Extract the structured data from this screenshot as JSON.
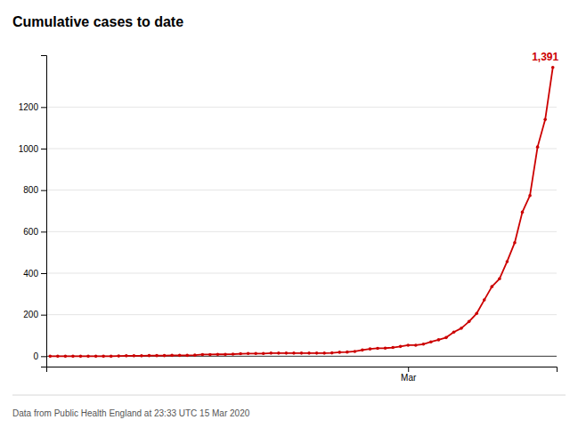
{
  "chart_data": {
    "type": "line",
    "title": "Cumulative cases to date",
    "footnote": "Data from Public Health England at 23:33 UTC 15 Mar 2020",
    "annotations": [
      "1,391"
    ],
    "categories": [
      null,
      null,
      null,
      null,
      null,
      null,
      null,
      null,
      null,
      null,
      null,
      null,
      null,
      null,
      null,
      null,
      null,
      null,
      null,
      null,
      null,
      null,
      null,
      null,
      null,
      null,
      null,
      null,
      null,
      null,
      null,
      null,
      null,
      null,
      null,
      null,
      null,
      null,
      null,
      null,
      null,
      null,
      null,
      null,
      null,
      null,
      null,
      "Mar",
      null,
      null,
      null,
      null,
      null,
      null,
      null,
      null,
      null,
      null,
      null,
      null,
      null,
      null,
      null,
      null,
      null,
      null,
      null
    ],
    "values": [
      0,
      0,
      0,
      0,
      0,
      0,
      0,
      0,
      0,
      1,
      2,
      2,
      2,
      3,
      3,
      3,
      4,
      4,
      4,
      5,
      8,
      8,
      9,
      9,
      10,
      12,
      13,
      13,
      13,
      15,
      15,
      15,
      15,
      15,
      15,
      15,
      15,
      16,
      19,
      20,
      23,
      30,
      35,
      38,
      39,
      42,
      47,
      53,
      53,
      58,
      69,
      79,
      90,
      116,
      135,
      167,
      206,
      271,
      335,
      373,
      456,
      547,
      694,
      774,
      1008,
      1140,
      1391
    ],
    "color": "#cc0000",
    "marker": "circle",
    "ylim": [
      -50,
      1450
    ],
    "yticks": [
      0,
      200,
      400,
      600,
      800,
      1000,
      1200
    ],
    "grid": true
  }
}
